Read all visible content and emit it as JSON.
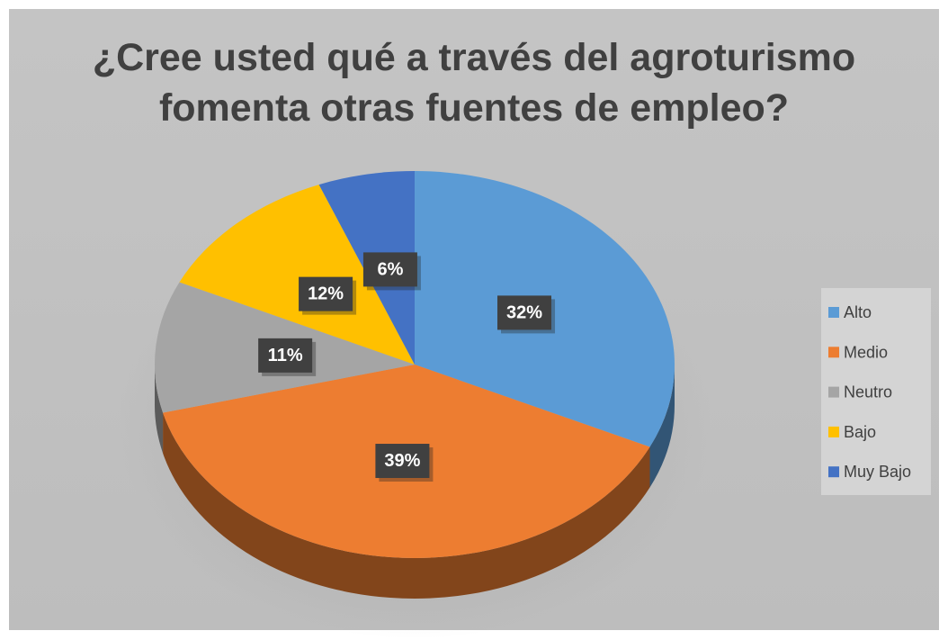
{
  "chart_data": {
    "type": "pie",
    "title": "¿Cree usted qué a través del agroturismo fomenta otras fuentes de empleo?",
    "categories": [
      "Alto",
      "Medio",
      "Neutro",
      "Bajo",
      "Muy Bajo"
    ],
    "values": [
      32,
      39,
      11,
      12,
      6
    ],
    "value_labels": [
      "32%",
      "39%",
      "11%",
      "12%",
      "6%"
    ],
    "colors": [
      "#5b9bd5",
      "#ed7d31",
      "#a5a5a5",
      "#ffc000",
      "#4472c4"
    ],
    "legend": "right"
  }
}
